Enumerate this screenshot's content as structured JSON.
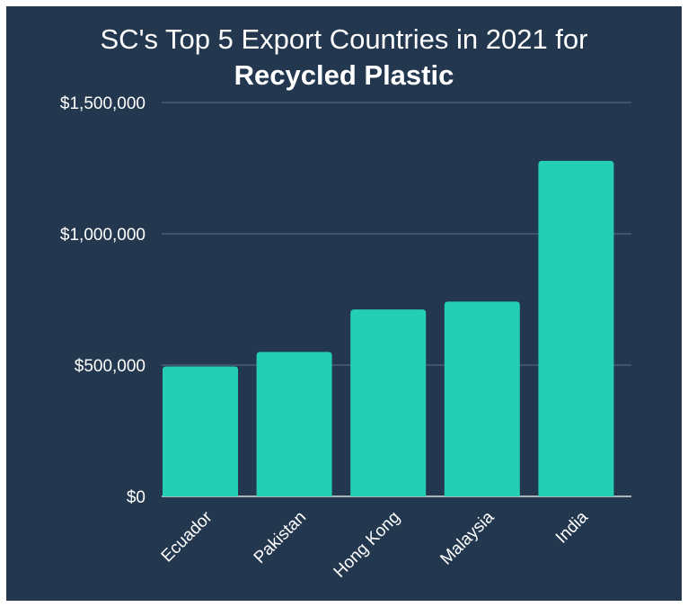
{
  "chart_data": {
    "type": "bar",
    "title": "SC's Top 5 Export Countries in 2021 for",
    "title_bold": "Recycled Plastic",
    "xlabel": "",
    "ylabel": "",
    "categories": [
      "Ecuador",
      "Pakistan",
      "Hong Kong",
      "Malaysia",
      "India"
    ],
    "values": [
      495000,
      550000,
      712000,
      742000,
      1278000
    ],
    "ylim": [
      0,
      1500000
    ],
    "yticks": [
      0,
      500000,
      1000000,
      1500000
    ],
    "ytick_labels": [
      "$0",
      "$500,000",
      "$1,000,000",
      "$1,500,000"
    ],
    "grid": true,
    "legend": "none",
    "colors": {
      "background": "#23374f",
      "bar": "#24cfb6",
      "grid": "#5f7287",
      "text": "#ffffff"
    }
  }
}
